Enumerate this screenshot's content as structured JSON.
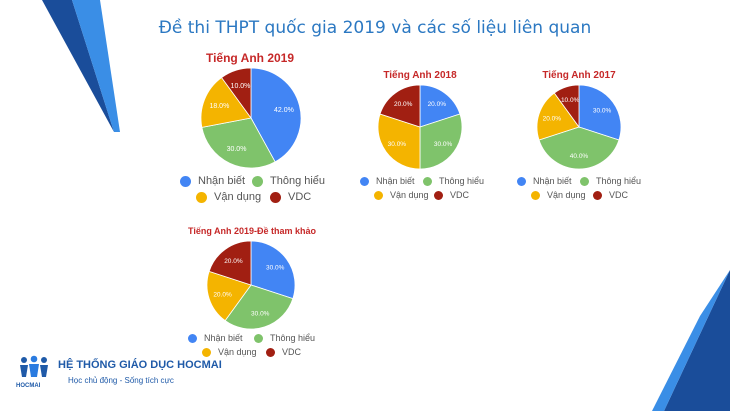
{
  "page": {
    "title": "Đề thi THPT quốc gia 2019 và các số liệu liên quan"
  },
  "colors": {
    "nhan_biet": "#4285f4",
    "thong_hieu": "#7fc36b",
    "van_dung": "#f4b400",
    "vdc": "#a11f12",
    "title": "#2b78c2",
    "chart_title": "#c62828",
    "deco_dark": "#1a4d9a",
    "deco_light": "#3a8ee6"
  },
  "legend": {
    "items": [
      "Nhận biết",
      "Thông hiểu",
      "Vận dụng",
      "VDC"
    ],
    "color_keys": [
      "nhan_biet",
      "thong_hieu",
      "van_dung",
      "vdc"
    ]
  },
  "chart_data": [
    {
      "type": "pie",
      "title": "Tiếng Anh 2019",
      "categories": [
        "Nhận biết",
        "Thông hiểu",
        "Vận dụng",
        "VDC"
      ],
      "values": [
        42.0,
        30.0,
        18.0,
        10.0
      ],
      "labels": [
        "42.0%",
        "30.0%",
        "18.0%",
        "10.0%"
      ],
      "legend_position": "bottom"
    },
    {
      "type": "pie",
      "title": "Tiếng Anh 2018",
      "categories": [
        "Nhận biết",
        "Thông hiểu",
        "Vận dụng",
        "VDC"
      ],
      "values": [
        20.0,
        30.0,
        30.0,
        20.0
      ],
      "labels": [
        "20.0%",
        "30.0%",
        "30.0%",
        "20.0%"
      ],
      "legend_position": "bottom"
    },
    {
      "type": "pie",
      "title": "Tiếng Anh 2017",
      "categories": [
        "Nhận biết",
        "Thông hiểu",
        "Vận dụng",
        "VDC"
      ],
      "values": [
        30.0,
        40.0,
        20.0,
        10.0
      ],
      "labels": [
        "30.0%",
        "40.0%",
        "20.0%",
        "10.0%"
      ],
      "legend_position": "bottom"
    },
    {
      "type": "pie",
      "title": "Tiếng Anh 2019-Đề tham khảo",
      "categories": [
        "Nhận biết",
        "Thông hiểu",
        "Vận dụng",
        "VDC"
      ],
      "values": [
        30.0,
        30.0,
        20.0,
        20.0
      ],
      "labels": [
        "30.0%",
        "30.0%",
        "20.0%",
        "20.0%"
      ],
      "legend_position": "bottom"
    }
  ],
  "logo": {
    "name": "HỆ THỐNG GIÁO DỤC HOCMAI",
    "tagline": "Học chủ động - Sống tích cực",
    "wordmark": "HOCMAI",
    "icon": "hocmai-figures-icon"
  }
}
